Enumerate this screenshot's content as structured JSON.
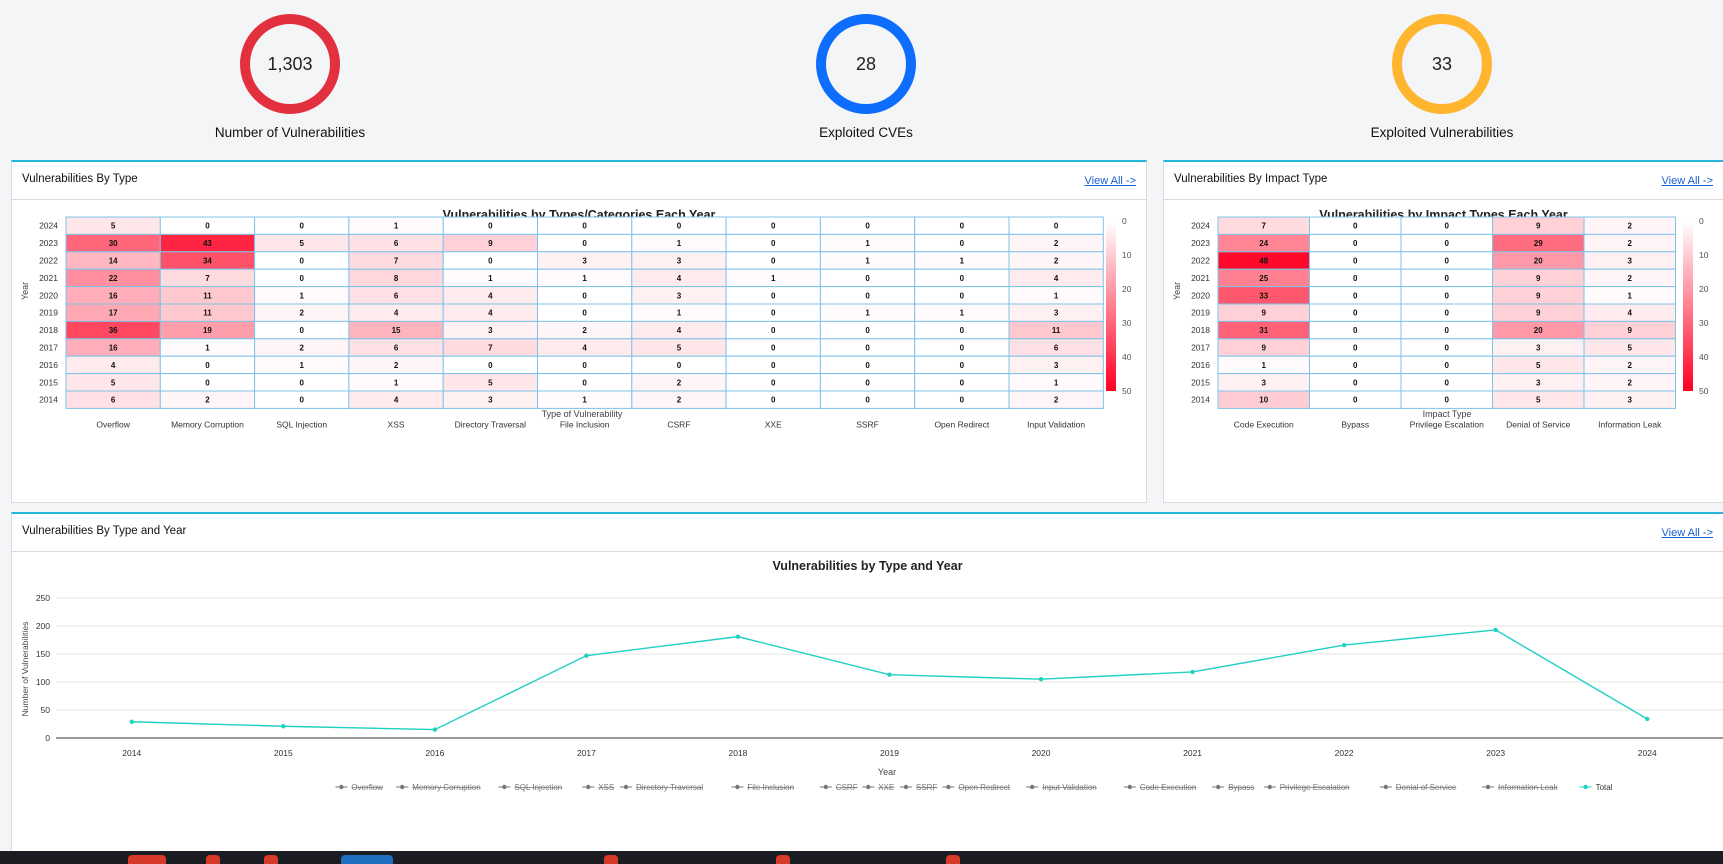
{
  "kpis": [
    {
      "value": "1,303",
      "label": "Number of Vulnerabilities",
      "color": "#e3303f"
    },
    {
      "value": "28",
      "label": "Exploited CVEs",
      "color": "#0d6efd"
    },
    {
      "value": "33",
      "label": "Exploited Vulnerabilities",
      "color": "#ffb52e"
    }
  ],
  "type_card": {
    "title": "Vulnerabilities By Type",
    "view_all": "View All ->",
    "chart_title": "Vulnerabilities by Types/Categories Each Year",
    "xlabel": "Type of Vulnerability",
    "ylabel": "Year"
  },
  "impact_card": {
    "title": "Vulnerabilities By Impact Type",
    "view_all": "View All ->",
    "chart_title": "Vulnerabilities by Impact Types Each Year",
    "xlabel": "Impact Type",
    "ylabel": "Year"
  },
  "year_card": {
    "title": "Vulnerabilities By Type and Year",
    "view_all": "View All ->",
    "chart_title": "Vulnerabilities by Type and Year",
    "xlabel": "Year",
    "ylabel": "Number of Vulnerabilities"
  },
  "legend": {
    "items": [
      "Overflow",
      "Memory Corruption",
      "SQL Injection",
      "XSS",
      "Directory Traversal",
      "File Inclusion",
      "CSRF",
      "XXE",
      "SSRF",
      "Open Redirect",
      "Input Validation",
      "Code Execution",
      "Bypass",
      "Privilege Escalation",
      "Denial of Service",
      "Information Leak",
      "Total"
    ],
    "active": "Total"
  },
  "chart_data": [
    {
      "type": "heatmap",
      "title": "Vulnerabilities by Types/Categories Each Year",
      "xlabel": "Type of Vulnerability",
      "ylabel": "Year",
      "x_categories": [
        "Overflow",
        "Memory Corruption",
        "SQL Injection",
        "XSS",
        "Directory Traversal",
        "File Inclusion",
        "CSRF",
        "XXE",
        "SSRF",
        "Open Redirect",
        "Input Validation"
      ],
      "y_categories": [
        "2024",
        "2023",
        "2022",
        "2021",
        "2020",
        "2019",
        "2018",
        "2017",
        "2016",
        "2015",
        "2014"
      ],
      "values": [
        [
          5,
          0,
          0,
          1,
          0,
          0,
          0,
          0,
          0,
          0,
          0
        ],
        [
          30,
          43,
          5,
          6,
          9,
          0,
          1,
          0,
          1,
          0,
          2
        ],
        [
          14,
          34,
          0,
          7,
          0,
          3,
          3,
          0,
          1,
          1,
          2
        ],
        [
          22,
          7,
          0,
          8,
          1,
          1,
          4,
          1,
          0,
          0,
          4
        ],
        [
          16,
          11,
          1,
          6,
          4,
          0,
          3,
          0,
          0,
          0,
          1
        ],
        [
          17,
          11,
          2,
          4,
          4,
          0,
          1,
          0,
          1,
          1,
          3
        ],
        [
          36,
          19,
          0,
          15,
          3,
          2,
          4,
          0,
          0,
          0,
          11
        ],
        [
          16,
          1,
          2,
          6,
          7,
          4,
          5,
          0,
          0,
          0,
          6
        ],
        [
          4,
          0,
          1,
          2,
          0,
          0,
          0,
          0,
          0,
          0,
          3
        ],
        [
          5,
          0,
          0,
          1,
          5,
          0,
          2,
          0,
          0,
          0,
          1
        ],
        [
          6,
          2,
          0,
          4,
          3,
          1,
          2,
          0,
          0,
          0,
          2
        ]
      ],
      "colorscale": {
        "min": 0,
        "max": 50,
        "ticks": [
          0,
          10,
          20,
          30,
          40,
          50
        ],
        "low_color": "#ffffff",
        "high_color": "#ff0022"
      }
    },
    {
      "type": "heatmap",
      "title": "Vulnerabilities by Impact Types Each Year",
      "xlabel": "Impact Type",
      "ylabel": "Year",
      "x_categories": [
        "Code Execution",
        "Bypass",
        "Privilege Escalation",
        "Denial of Service",
        "Information Leak"
      ],
      "y_categories": [
        "2024",
        "2023",
        "2022",
        "2021",
        "2020",
        "2019",
        "2018",
        "2017",
        "2016",
        "2015",
        "2014"
      ],
      "values": [
        [
          7,
          0,
          0,
          9,
          2
        ],
        [
          24,
          0,
          0,
          29,
          2
        ],
        [
          48,
          0,
          0,
          20,
          3
        ],
        [
          25,
          0,
          0,
          9,
          2
        ],
        [
          33,
          0,
          0,
          9,
          1
        ],
        [
          9,
          0,
          0,
          9,
          4
        ],
        [
          31,
          0,
          0,
          20,
          9
        ],
        [
          9,
          0,
          0,
          3,
          5
        ],
        [
          1,
          0,
          0,
          5,
          2
        ],
        [
          3,
          0,
          0,
          3,
          2
        ],
        [
          10,
          0,
          0,
          5,
          3
        ]
      ],
      "colorscale": {
        "min": 0,
        "max": 50,
        "ticks": [
          0,
          10,
          20,
          30,
          40,
          50
        ],
        "low_color": "#ffffff",
        "high_color": "#ff0022"
      }
    },
    {
      "type": "line",
      "title": "Vulnerabilities by Type and Year",
      "xlabel": "Year",
      "ylabel": "Number of Vulnerabilities",
      "x": [
        "2014",
        "2015",
        "2016",
        "2017",
        "2018",
        "2019",
        "2020",
        "2021",
        "2022",
        "2023",
        "2024"
      ],
      "ylim": [
        0,
        250
      ],
      "yticks": [
        0,
        50,
        100,
        150,
        200,
        250
      ],
      "series": [
        {
          "name": "Total",
          "color": "#1fd1c2",
          "values": [
            29,
            21,
            15,
            147,
            181,
            113,
            105,
            118,
            166,
            193,
            34
          ]
        }
      ]
    }
  ]
}
